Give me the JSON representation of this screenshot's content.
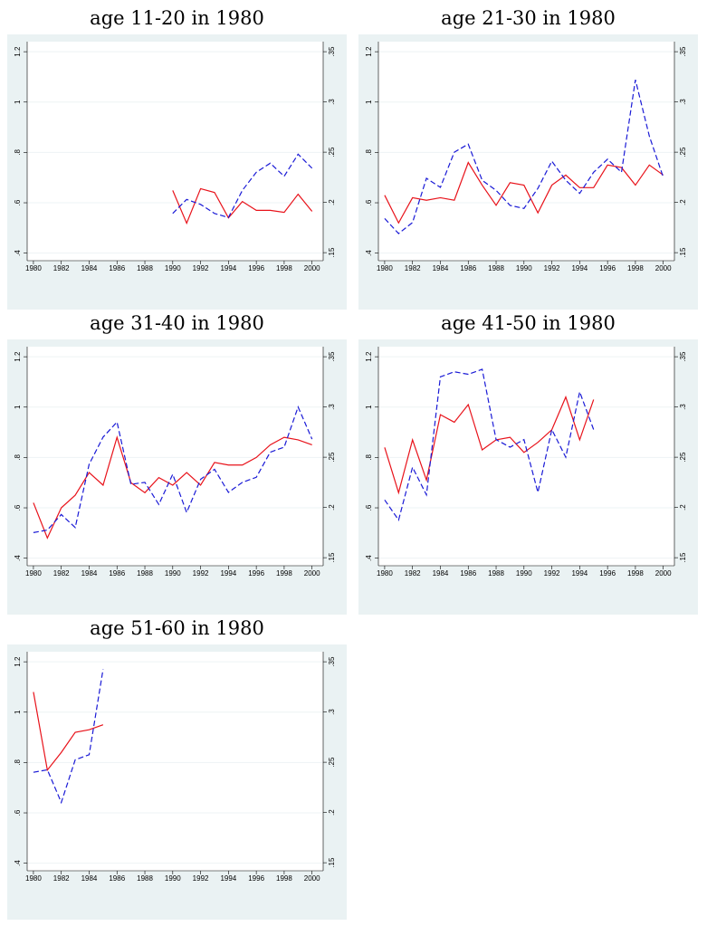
{
  "chart_data": [
    {
      "type": "line",
      "title": "age 11-20 in 1980",
      "x": [
        1990,
        1991,
        1992,
        1993,
        1994,
        1995,
        1996,
        1997,
        1998,
        1999,
        2000
      ],
      "series": [
        {
          "color": "#e8121a",
          "line_style": "solid",
          "values": [
            0.649,
            0.519,
            0.656,
            0.641,
            0.54,
            0.605,
            0.57,
            0.57,
            0.562,
            0.634,
            0.566
          ]
        },
        {
          "color": "#1a1ad6",
          "line_style": "dashed",
          "axis": "y2",
          "values": [
            0.189,
            0.203,
            0.198,
            0.189,
            0.185,
            0.212,
            0.23,
            0.239,
            0.226,
            0.248,
            0.234
          ]
        }
      ],
      "xlim": [
        1979.55,
        2000.8
      ],
      "xticks": [
        1980,
        1982,
        1984,
        1986,
        1988,
        1990,
        1992,
        1994,
        1996,
        1998,
        2000
      ],
      "ylim": [
        0.37,
        1.24
      ],
      "yticks": [
        {
          "value": 0.4,
          "label": ".4"
        },
        {
          "value": 0.6,
          "label": ".6"
        },
        {
          "value": 0.8,
          "label": ".8"
        },
        1,
        1.2
      ],
      "y2lim": [
        0.142,
        0.36
      ],
      "y2ticks": [
        {
          "value": 0.15,
          "label": ".15"
        },
        {
          "value": 0.2,
          "label": ".2"
        },
        {
          "value": 0.25,
          "label": ".25"
        },
        {
          "value": 0.3,
          "label": ".3"
        },
        {
          "value": 0.35,
          "label": ".35"
        }
      ],
      "grid": true
    },
    {
      "type": "line",
      "title": "age 21-30 in 1980",
      "x": [
        1980,
        1981,
        1982,
        1983,
        1984,
        1985,
        1986,
        1987,
        1988,
        1989,
        1990,
        1991,
        1992,
        1993,
        1994,
        1995,
        1996,
        1997,
        1998,
        1999,
        2000
      ],
      "series": [
        {
          "color": "#e8121a",
          "line_style": "solid",
          "values": [
            0.63,
            0.52,
            0.62,
            0.61,
            0.62,
            0.61,
            0.76,
            0.67,
            0.59,
            0.68,
            0.67,
            0.56,
            0.67,
            0.71,
            0.66,
            0.66,
            0.75,
            0.74,
            0.67,
            0.75,
            0.71
          ]
        },
        {
          "color": "#1a1ad6",
          "line_style": "dashed",
          "axis": "y2",
          "values": [
            0.184,
            0.169,
            0.18,
            0.224,
            0.215,
            0.25,
            0.258,
            0.222,
            0.212,
            0.197,
            0.194,
            0.214,
            0.241,
            0.222,
            0.209,
            0.23,
            0.243,
            0.23,
            0.322,
            0.266,
            0.225
          ]
        }
      ],
      "xlim": [
        1979.55,
        2000.8
      ],
      "xticks": [
        1980,
        1982,
        1984,
        1986,
        1988,
        1990,
        1992,
        1994,
        1996,
        1998,
        2000
      ],
      "ylim": [
        0.37,
        1.24
      ],
      "yticks": [
        {
          "value": 0.4,
          "label": ".4"
        },
        {
          "value": 0.6,
          "label": ".6"
        },
        {
          "value": 0.8,
          "label": ".8"
        },
        1,
        1.2
      ],
      "y2lim": [
        0.142,
        0.36
      ],
      "y2ticks": [
        {
          "value": 0.15,
          "label": ".15"
        },
        {
          "value": 0.2,
          "label": ".2"
        },
        {
          "value": 0.25,
          "label": ".25"
        },
        {
          "value": 0.3,
          "label": ".3"
        },
        {
          "value": 0.35,
          "label": ".35"
        }
      ],
      "grid": true
    },
    {
      "type": "line",
      "title": "age 31-40 in 1980",
      "x": [
        1980,
        1981,
        1982,
        1983,
        1984,
        1985,
        1986,
        1987,
        1988,
        1989,
        1990,
        1991,
        1992,
        1993,
        1994,
        1995,
        1996,
        1997,
        1998,
        1999,
        2000
      ],
      "series": [
        {
          "color": "#e8121a",
          "line_style": "solid",
          "values": [
            0.62,
            0.48,
            0.6,
            0.65,
            0.74,
            0.69,
            0.88,
            0.7,
            0.66,
            0.72,
            0.69,
            0.74,
            0.69,
            0.78,
            0.77,
            0.77,
            0.8,
            0.85,
            0.88,
            0.87,
            0.85
          ]
        },
        {
          "color": "#1a1ad6",
          "line_style": "dashed",
          "axis": "y2",
          "values": [
            0.175,
            0.1775,
            0.193,
            0.18,
            0.243,
            0.27,
            0.285,
            0.223,
            0.225,
            0.203,
            0.233,
            0.195,
            0.228,
            0.238,
            0.215,
            0.225,
            0.23,
            0.255,
            0.26,
            0.3,
            0.268
          ]
        }
      ],
      "xlim": [
        1979.55,
        2000.8
      ],
      "xticks": [
        1980,
        1982,
        1984,
        1986,
        1988,
        1990,
        1992,
        1994,
        1996,
        1998,
        2000
      ],
      "ylim": [
        0.37,
        1.24
      ],
      "yticks": [
        {
          "value": 0.4,
          "label": ".4"
        },
        {
          "value": 0.6,
          "label": ".6"
        },
        {
          "value": 0.8,
          "label": ".8"
        },
        1,
        1.2
      ],
      "y2lim": [
        0.142,
        0.36
      ],
      "y2ticks": [
        {
          "value": 0.15,
          "label": ".15"
        },
        {
          "value": 0.2,
          "label": ".2"
        },
        {
          "value": 0.25,
          "label": ".25"
        },
        {
          "value": 0.3,
          "label": ".3"
        },
        {
          "value": 0.35,
          "label": ".35"
        }
      ],
      "grid": true
    },
    {
      "type": "line",
      "title": "age 41-50 in 1980",
      "x": [
        1980,
        1981,
        1982,
        1983,
        1984,
        1985,
        1986,
        1987,
        1988,
        1989,
        1990,
        1991,
        1992,
        1993,
        1994,
        1995
      ],
      "series": [
        {
          "color": "#e8121a",
          "line_style": "solid",
          "values": [
            0.84,
            0.66,
            0.87,
            0.71,
            0.97,
            0.94,
            1.01,
            0.83,
            0.87,
            0.88,
            0.82,
            0.86,
            0.91,
            1.04,
            0.87,
            1.03
          ]
        },
        {
          "color": "#1a1ad6",
          "line_style": "dashed",
          "axis": "y2",
          "values": [
            0.2075,
            0.1875,
            0.24,
            0.2125,
            0.33,
            0.335,
            0.3325,
            0.3375,
            0.2675,
            0.26,
            0.2675,
            0.215,
            0.2775,
            0.25,
            0.315,
            0.2775
          ]
        }
      ],
      "xlim": [
        1979.55,
        2000.8
      ],
      "xticks": [
        1980,
        1982,
        1984,
        1986,
        1988,
        1990,
        1992,
        1994,
        1996,
        1998,
        2000
      ],
      "ylim": [
        0.37,
        1.24
      ],
      "yticks": [
        {
          "value": 0.4,
          "label": ".4"
        },
        {
          "value": 0.6,
          "label": ".6"
        },
        {
          "value": 0.8,
          "label": ".8"
        },
        1,
        1.2
      ],
      "y2lim": [
        0.142,
        0.36
      ],
      "y2ticks": [
        {
          "value": 0.15,
          "label": ".15"
        },
        {
          "value": 0.2,
          "label": ".2"
        },
        {
          "value": 0.25,
          "label": ".25"
        },
        {
          "value": 0.3,
          "label": ".3"
        },
        {
          "value": 0.35,
          "label": ".35"
        }
      ],
      "grid": true
    },
    {
      "type": "line",
      "title": "age 51-60 in 1980",
      "x": [
        1980,
        1981,
        1982,
        1983,
        1984,
        1985
      ],
      "series": [
        {
          "color": "#e8121a",
          "line_style": "solid",
          "values": [
            1.08,
            0.77,
            0.84,
            0.92,
            0.93,
            0.95
          ]
        },
        {
          "color": "#1a1ad6",
          "line_style": "dashed",
          "axis": "y2",
          "values": [
            0.24,
            0.2425,
            0.21,
            0.2525,
            0.2575,
            0.3425
          ]
        }
      ],
      "xlim": [
        1979.55,
        2000.8
      ],
      "xticks": [
        1980,
        1982,
        1984,
        1986,
        1988,
        1990,
        1992,
        1994,
        1996,
        1998,
        2000
      ],
      "ylim": [
        0.37,
        1.24
      ],
      "yticks": [
        {
          "value": 0.4,
          "label": ".4"
        },
        {
          "value": 0.6,
          "label": ".6"
        },
        {
          "value": 0.8,
          "label": ".8"
        },
        1,
        1.2
      ],
      "y2lim": [
        0.142,
        0.36
      ],
      "y2ticks": [
        {
          "value": 0.15,
          "label": ".15"
        },
        {
          "value": 0.2,
          "label": ".2"
        },
        {
          "value": 0.25,
          "label": ".25"
        },
        {
          "value": 0.3,
          "label": ".3"
        },
        {
          "value": 0.35,
          "label": ".35"
        }
      ],
      "grid": true
    }
  ]
}
